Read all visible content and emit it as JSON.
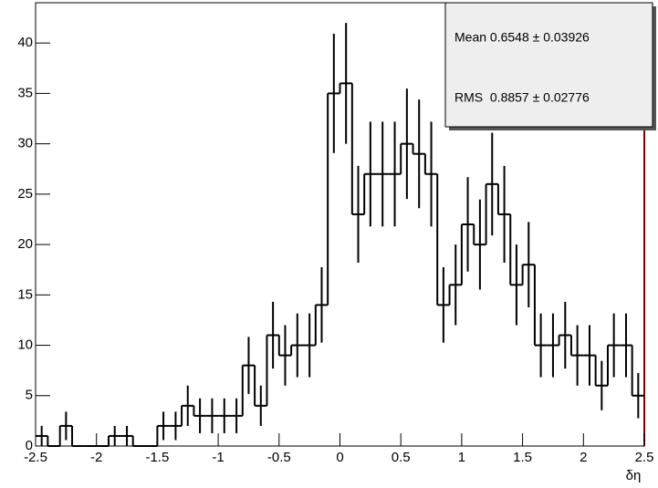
{
  "chart_data": {
    "type": "histogram",
    "bins": [
      -2.5,
      -2.4,
      -2.3,
      -2.2,
      -2.1,
      -2.0,
      -1.9,
      -1.8,
      -1.7,
      -1.6,
      -1.5,
      -1.4,
      -1.3,
      -1.2,
      -1.1,
      -1.0,
      -0.9,
      -0.8,
      -0.7,
      -0.6,
      -0.5,
      -0.4,
      -0.3,
      -0.2,
      -0.1,
      0,
      0.1,
      0.2,
      0.3,
      0.4,
      0.5,
      0.6,
      0.7,
      0.8,
      0.9,
      1.0,
      1.1,
      1.2,
      1.3,
      1.4,
      1.5,
      1.6,
      1.7,
      1.8,
      1.9,
      2.0,
      2.1,
      2.2,
      2.3,
      2.4,
      2.5
    ],
    "values": [
      1,
      0,
      2,
      0,
      0,
      0,
      1,
      1,
      0,
      0,
      2,
      2,
      4,
      3,
      3,
      3,
      3,
      8,
      4,
      11,
      9,
      10,
      10,
      14,
      35,
      36,
      23,
      27,
      27,
      27,
      30,
      29,
      27,
      14,
      16,
      22,
      20,
      26,
      23,
      16,
      18,
      10,
      10,
      11,
      9,
      9,
      6,
      10,
      10,
      5
    ],
    "errors": [
      1,
      0,
      1.41,
      0,
      0,
      0,
      1,
      1,
      0,
      0,
      1.41,
      1.41,
      2,
      1.73,
      1.73,
      1.73,
      1.73,
      2.83,
      2,
      3.32,
      3,
      3.16,
      3.16,
      3.74,
      5.92,
      6,
      4.8,
      5.2,
      5.2,
      5.2,
      5.48,
      5.39,
      5.2,
      3.74,
      4,
      4.69,
      4.47,
      5.1,
      4.8,
      4,
      4.24,
      3.16,
      3.16,
      3.32,
      3,
      3,
      2.45,
      3.16,
      3.16,
      2.24
    ],
    "color": "#000000",
    "xlabel": "δη",
    "xlim": [
      -2.5,
      2.5
    ],
    "xticks": [
      -2.5,
      -2,
      -1.5,
      -1,
      -0.5,
      0,
      0.5,
      1,
      1.5,
      2,
      2.5
    ],
    "ylim": [
      0,
      44
    ],
    "yticks": [
      0,
      5,
      10,
      15,
      20,
      25,
      30,
      35,
      40
    ],
    "stats": [
      "Mean 0.6548 ± 0.03926",
      "RMS  0.8857 ± 0.02776"
    ]
  }
}
